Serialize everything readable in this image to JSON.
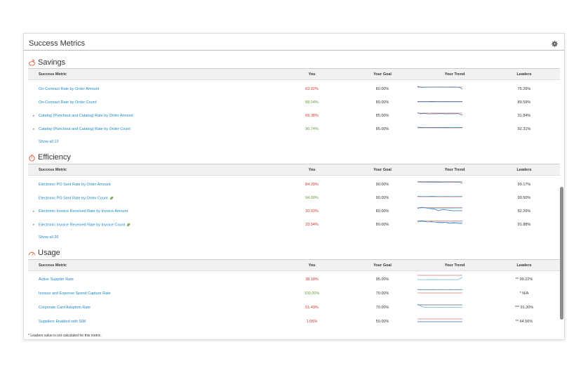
{
  "card": {
    "title": "Success Metrics"
  },
  "headers": {
    "metric": "Success Metric",
    "you": "You",
    "goal": "Your Goal",
    "trend": "Your Trend",
    "leaders": "Leaders"
  },
  "savings": {
    "title": "Savings",
    "rows": [
      {
        "metric": "On-Contract Rate by Order Amount",
        "you": "63.92%",
        "you_status": "red",
        "goal": "80.00%",
        "leaders": "75.26%",
        "expandable": false
      },
      {
        "metric": "On-Contract Rate by Order Count",
        "you": "88.04%",
        "you_status": "green",
        "goal": "80.00%",
        "leaders": "89.59%",
        "expandable": false
      },
      {
        "metric": "Catalog (Punchout and Catalog) Rate by Order Amount",
        "you": "66.38%",
        "you_status": "red",
        "goal": "85.00%",
        "leaders": "31.84%",
        "expandable": true
      },
      {
        "metric": "Catalog (Punchout and Catalog) Rate by Order Count",
        "you": "90.74%",
        "you_status": "green",
        "goal": "85.00%",
        "leaders": "92.31%",
        "expandable": true
      }
    ],
    "show_all": "Show all 13"
  },
  "efficiency": {
    "title": "Efficiency",
    "rows": [
      {
        "metric": "Electronic PO Sent Rate by Order Amount",
        "you": "84.39%",
        "you_status": "red",
        "goal": "90.00%",
        "leaders": "99.17%",
        "expandable": false,
        "leaf": false
      },
      {
        "metric": "Electronic PO Sent Rate by Order Count",
        "you": "94.09%",
        "you_status": "green",
        "goal": "90.00%",
        "leaders": "99.50%",
        "expandable": false,
        "leaf": true
      },
      {
        "metric": "Electronic Invoice Received Rate by Invoice Amount",
        "you": "20.93%",
        "you_status": "red",
        "goal": "80.00%",
        "leaders": "82.26%",
        "expandable": true,
        "leaf": false
      },
      {
        "metric": "Electronic Invoice Received Rate by Invoice Count",
        "you": "33.94%",
        "you_status": "red",
        "goal": "80.00%",
        "leaders": "91.88%",
        "expandable": true,
        "leaf": true
      }
    ],
    "show_all": "Show all 26"
  },
  "usage": {
    "title": "Usage",
    "rows": [
      {
        "metric": "Active Supplier Rate",
        "you": "38.18%",
        "you_status": "red",
        "goal": "95.00%",
        "leaders": "** 99.22%"
      },
      {
        "metric": "Invoice and Expense Spend Capture Rate",
        "you": "100.00%",
        "you_status": "green",
        "goal": "70.00%",
        "leaders": "* N/A"
      },
      {
        "metric": "Corporate Card Adoption Rate",
        "you": "51.43%",
        "you_status": "red",
        "goal": "70.00%",
        "leaders": "*** 91.30%"
      },
      {
        "metric": "Suppliers Enabled with SIM",
        "you": "1.06%",
        "you_status": "red",
        "goal": "50.00%",
        "leaders": "** 64.56%"
      }
    ]
  },
  "footnote": "* Leaders value is not calculated for this metric.",
  "colors": {
    "link": "#1e88c8",
    "below_goal": "#d0312d",
    "above_goal": "#5b9e3c",
    "trend_line": "#2c6fa8",
    "goal_line": "#c0392b"
  },
  "icons": {
    "gear": "gear-icon",
    "savings": "piggy-bank-icon",
    "efficiency": "stopwatch-icon",
    "usage": "speedometer-icon",
    "leaf": "leaf-icon"
  }
}
